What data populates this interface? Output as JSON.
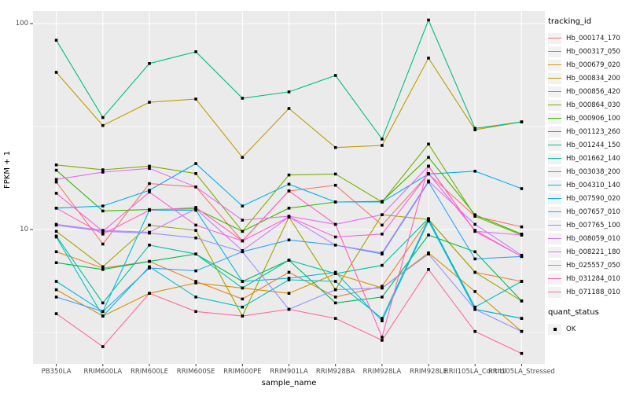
{
  "figure": {
    "panel_bg": "#EBEBEB",
    "grid_color": "#FFFFFF",
    "tick_mark_color": "#333333",
    "axis_text_color": "#4D4D4D",
    "marker_color": "#000000"
  },
  "legend": {
    "tracking_title": "tracking_id",
    "quant_title": "quant_status",
    "quant_items": [
      {
        "label": "OK",
        "marker": "square",
        "color": "#000000"
      }
    ]
  },
  "chart_data": {
    "type": "line",
    "title": "",
    "xlabel": "sample_name",
    "ylabel": "FPKM + 1",
    "y_scale": "log10",
    "y_ticks": [
      100,
      10
    ],
    "y_minor_ticks": [
      31.6,
      3.16
    ],
    "ylim": [
      2.2,
      119
    ],
    "grid": true,
    "legend_position": "right",
    "marker": "square",
    "categories": [
      "PB350LA",
      "RRIM600LA",
      "RRIM600LE",
      "RRIM600SE",
      "RRIM600PE",
      "RRIM901LA",
      "RRIM928BA",
      "RRIM928LA",
      "RRIM928LE",
      "RRII105LA_Control",
      "RRII105LA_Stressed"
    ],
    "series": [
      {
        "name": "Hb_000174_170",
        "color": "#F8766D",
        "values": [
          17.0,
          8.5,
          16.7,
          16.1,
          8.8,
          15.4,
          16.4,
          10.5,
          18.6,
          11.6,
          10.3
        ]
      },
      {
        "name": "Hb_000317_050",
        "color": "#EA8331",
        "values": [
          7.8,
          6.5,
          7.0,
          5.6,
          4.6,
          6.2,
          4.7,
          5.3,
          11.2,
          6.2,
          5.6
        ]
      },
      {
        "name": "Hb_000679_020",
        "color": "#D89000",
        "values": [
          5.1,
          3.8,
          4.9,
          5.5,
          5.2,
          4.9,
          6.1,
          5.2,
          7.7,
          5.0,
          3.2
        ]
      },
      {
        "name": "Hb_000834_200",
        "color": "#C09B00",
        "values": [
          58,
          32,
          41.5,
          43,
          22.4,
          38.7,
          25,
          25.6,
          68,
          30.5,
          33.3
        ]
      },
      {
        "name": "Hb_000856_420",
        "color": "#A3A500",
        "values": [
          9.8,
          6.6,
          10.5,
          9.9,
          3.8,
          11.5,
          5.1,
          11.8,
          11.2,
          6.2,
          4.5
        ]
      },
      {
        "name": "Hb_000864_030",
        "color": "#7CAE00",
        "values": [
          20.6,
          19.5,
          20.3,
          18.7,
          9.8,
          18.4,
          18.6,
          13.6,
          26,
          11.6,
          9.4
        ]
      },
      {
        "name": "Hb_000906_100",
        "color": "#39B600",
        "values": [
          19.4,
          12.3,
          12.5,
          12.6,
          9.8,
          12.7,
          13.6,
          13.7,
          22.4,
          11.8,
          9.5
        ]
      },
      {
        "name": "Hb_001123_260",
        "color": "#00BB4E",
        "values": [
          6.9,
          6.4,
          7.0,
          7.6,
          5.6,
          7.1,
          4.4,
          4.7,
          9.4,
          7.8,
          4.5
        ]
      },
      {
        "name": "Hb_001244_150",
        "color": "#00BF7D",
        "values": [
          83,
          35,
          64,
          73,
          43.4,
          46.6,
          56,
          27.5,
          104,
          31,
          33.3
        ]
      },
      {
        "name": "Hb_001662_140",
        "color": "#00C1A3",
        "values": [
          9.3,
          4.4,
          8.4,
          7.6,
          5.2,
          7.1,
          6.1,
          6.7,
          11.3,
          4.1,
          3.7
        ]
      },
      {
        "name": "Hb_003038_200",
        "color": "#00BFC4",
        "values": [
          9.2,
          3.8,
          6.6,
          4.7,
          4.2,
          5.7,
          5.6,
          3.7,
          11.2,
          4.2,
          5.6
        ]
      },
      {
        "name": "Hb_004310_140",
        "color": "#00BAE0",
        "values": [
          5.6,
          4.0,
          12.4,
          12.4,
          5.6,
          5.8,
          6.2,
          3.6,
          11.0,
          4.1,
          3.7
        ]
      },
      {
        "name": "Hb_007590_020",
        "color": "#00B0F6",
        "values": [
          12.7,
          13.0,
          15.5,
          20.9,
          13.0,
          16.6,
          13.6,
          13.6,
          18.6,
          19.2,
          15.8
        ]
      },
      {
        "name": "Hb_007657_010",
        "color": "#35A2FF",
        "values": [
          4.7,
          4.0,
          6.5,
          6.3,
          7.8,
          8.9,
          8.4,
          7.6,
          17.0,
          7.2,
          7.4
        ]
      },
      {
        "name": "Hb_007765_100",
        "color": "#9590FF",
        "values": [
          10.5,
          9.8,
          9.6,
          9.1,
          7.8,
          4.1,
          5.1,
          5.2,
          7.6,
          4.1,
          3.2
        ]
      },
      {
        "name": "Hb_008059_010",
        "color": "#C77CFF",
        "values": [
          10.6,
          9.9,
          9.7,
          12.6,
          7.9,
          11.5,
          8.4,
          7.7,
          17.2,
          10.6,
          7.5
        ]
      },
      {
        "name": "Hb_008221_180",
        "color": "#E76BF3",
        "values": [
          17.5,
          19.0,
          19.8,
          16.1,
          11.1,
          11.6,
          10.6,
          11.8,
          20.3,
          9.8,
          9.4
        ]
      },
      {
        "name": "Hb_025557_050",
        "color": "#FA62DB",
        "values": [
          15.0,
          9.8,
          15.2,
          10.5,
          8.8,
          11.5,
          9.2,
          9.5,
          18.7,
          9.9,
          7.4
        ]
      },
      {
        "name": "Hb_031284_010",
        "color": "#FF62BC",
        "values": [
          12.7,
          9.5,
          12.4,
          12.8,
          8.8,
          15.4,
          10.6,
          3.0,
          20.3,
          9.8,
          7.4
        ]
      },
      {
        "name": "Hb_071188_010",
        "color": "#FF6A98",
        "values": [
          3.9,
          2.7,
          4.9,
          4.0,
          3.8,
          4.1,
          3.7,
          2.9,
          6.4,
          3.2,
          2.5
        ]
      }
    ]
  }
}
